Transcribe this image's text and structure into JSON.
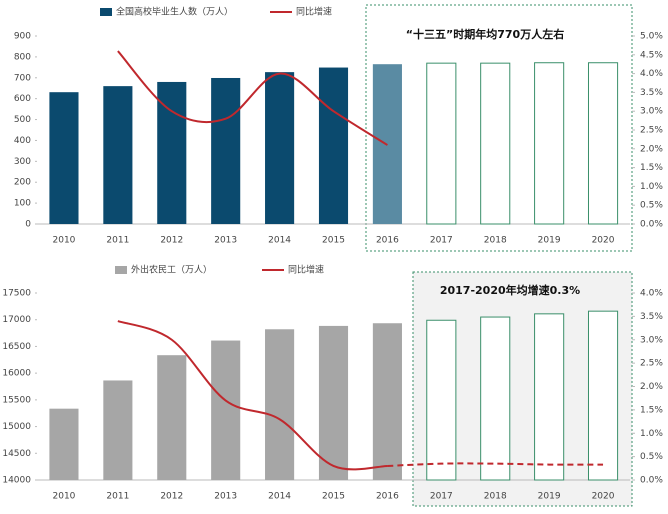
{
  "chart_data": [
    {
      "type": "bar",
      "categories": [
        "2010",
        "2011",
        "2012",
        "2013",
        "2014",
        "2015",
        "2016",
        "2017",
        "2018",
        "2019",
        "2020"
      ],
      "series": [
        {
          "name": "全国高校毕业生人数（万人）",
          "color": "#0b4a6e",
          "axis": "y",
          "colors": [
            "#0b4a6e",
            "#0b4a6e",
            "#0b4a6e",
            "#0b4a6e",
            "#0b4a6e",
            "#0b4a6e",
            "#5a8ba3",
            "#ffffff",
            "#ffffff",
            "#ffffff",
            "#ffffff"
          ],
          "values": [
            631,
            660,
            680,
            699,
            727,
            749,
            765,
            770,
            770,
            772,
            772
          ]
        },
        {
          "name": "同比增速",
          "color": "#c0282d",
          "axis": "y2",
          "values": [
            null,
            4.6,
            3.0,
            2.8,
            4.0,
            3.0,
            2.1,
            null,
            null,
            null,
            null
          ]
        }
      ],
      "ylim": [
        0,
        900
      ],
      "yticks": [
        0,
        100,
        200,
        300,
        400,
        500,
        600,
        700,
        800,
        900
      ],
      "y2lim": [
        0,
        5
      ],
      "y2ticks": [
        {
          "value": 0,
          "label": "0.0%"
        },
        {
          "value": 0.5,
          "label": "0.5%"
        },
        {
          "value": 1,
          "label": "1.0%"
        },
        {
          "value": 1.5,
          "label": "1.5%"
        },
        {
          "value": 2,
          "label": "2.0%"
        },
        {
          "value": 2.5,
          "label": "2.5%"
        },
        {
          "value": 3,
          "label": "3.0%"
        },
        {
          "value": 3.5,
          "label": "3.5%"
        },
        {
          "value": 4,
          "label": "4.0%"
        },
        {
          "value": 4.5,
          "label": "4.5%"
        },
        {
          "value": 5,
          "label": "5.0%"
        }
      ],
      "annotation": "“十三五”时期年均770万人左右"
    },
    {
      "type": "bar",
      "categories": [
        "2010",
        "2011",
        "2012",
        "2013",
        "2014",
        "2015",
        "2016",
        "2017",
        "2018",
        "2019",
        "2020"
      ],
      "series": [
        {
          "name": "外出农民工（万人）",
          "color": "#a6a6a6",
          "axis": "y",
          "colors": [
            "#a6a6a6",
            "#a6a6a6",
            "#a6a6a6",
            "#a6a6a6",
            "#a6a6a6",
            "#a6a6a6",
            "#a6a6a6",
            "#ffffff",
            "#ffffff",
            "#ffffff",
            "#ffffff"
          ],
          "values": [
            15335,
            15863,
            16336,
            16610,
            16821,
            16884,
            16934,
            16990,
            17050,
            17110,
            17160
          ]
        },
        {
          "name": "同比增速",
          "color": "#c0282d",
          "axis": "y2",
          "values": [
            null,
            3.4,
            3.0,
            1.7,
            1.3,
            0.3,
            0.3,
            null,
            null,
            null,
            null
          ]
        },
        {
          "color": "#c0282d",
          "axis": "y2",
          "dashed": true,
          "values": [
            null,
            null,
            null,
            null,
            null,
            null,
            0.3,
            0.35,
            0.35,
            0.33,
            0.33
          ]
        }
      ],
      "ylim": [
        14000,
        17500
      ],
      "yticks": [
        14000,
        14500,
        15000,
        15500,
        16000,
        16500,
        17000,
        17500
      ],
      "y2lim": [
        0,
        4
      ],
      "y2ticks": [
        {
          "value": 0,
          "label": "0.0%"
        },
        {
          "value": 0.5,
          "label": "0.5%"
        },
        {
          "value": 1,
          "label": "1.0%"
        },
        {
          "value": 1.5,
          "label": "1.5%"
        },
        {
          "value": 2,
          "label": "2.0%"
        },
        {
          "value": 2.5,
          "label": "2.5%"
        },
        {
          "value": 3,
          "label": "3.0%"
        },
        {
          "value": 3.5,
          "label": "3.5%"
        },
        {
          "value": 4,
          "label": "4.0%"
        }
      ],
      "annotation": "2017-2020年均增速0.3%"
    }
  ]
}
